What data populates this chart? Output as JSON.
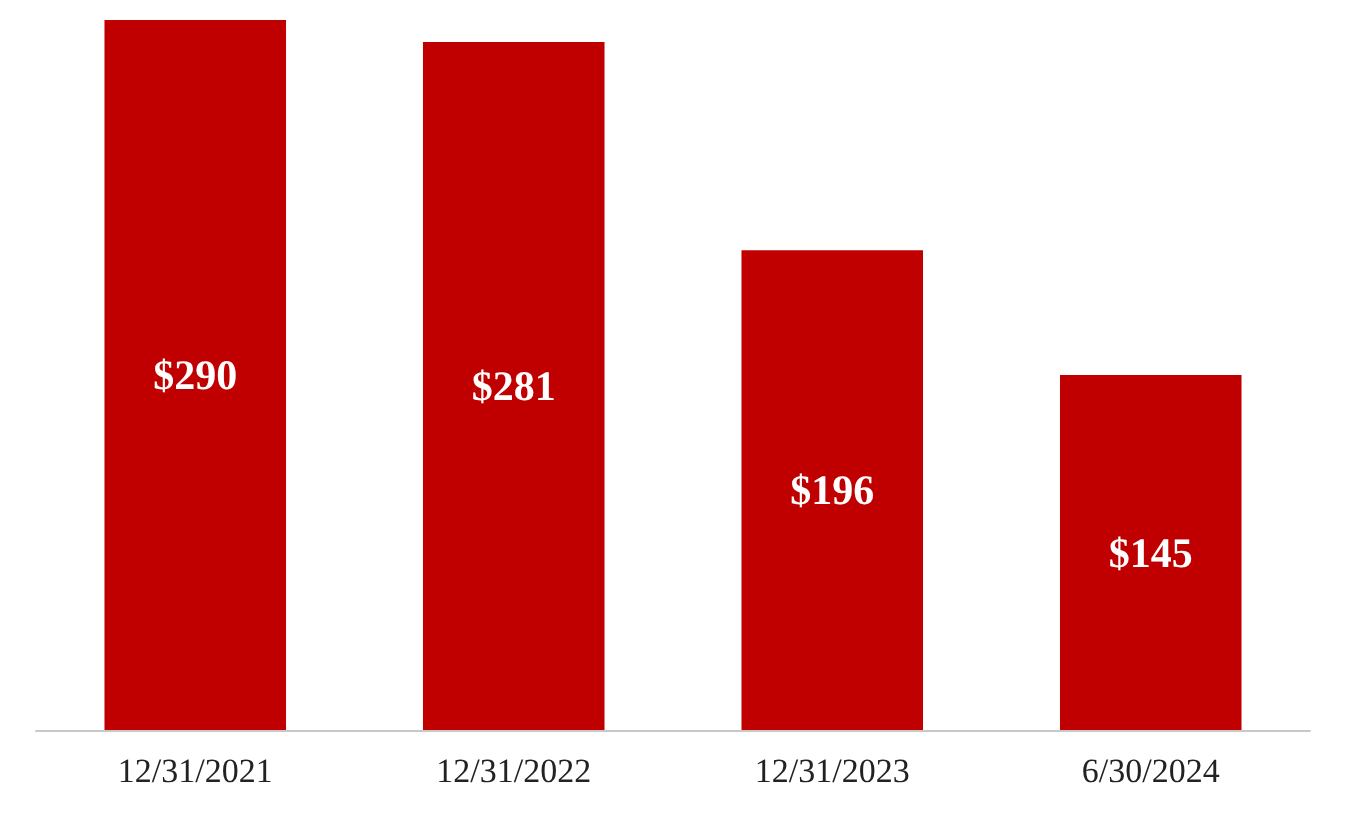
{
  "chart_data": {
    "type": "bar",
    "categories": [
      "12/31/2021",
      "12/31/2022",
      "12/31/2023",
      "6/30/2024"
    ],
    "values": [
      290,
      281,
      196,
      145
    ],
    "value_labels": [
      "$290",
      "$281",
      "$196",
      "$145"
    ],
    "color": "#c00000"
  }
}
